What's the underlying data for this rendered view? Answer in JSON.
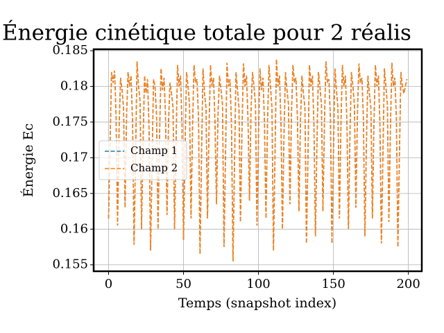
{
  "chart_data": {
    "type": "line",
    "title": "Énergie cinétique totale pour 2 réalis",
    "xlabel": "Temps (snapshot index)",
    "ylabel": "Énergie Ec",
    "x": [
      0,
      1,
      2,
      3,
      4,
      5,
      6,
      7,
      8,
      9,
      10,
      11,
      12,
      13,
      14,
      15,
      16,
      17,
      18,
      19,
      20,
      21,
      22,
      23,
      24,
      25,
      26,
      27,
      28,
      29,
      30,
      31,
      32,
      33,
      34,
      35,
      36,
      37,
      38,
      39,
      40,
      41,
      42,
      43,
      44,
      45,
      46,
      47,
      48,
      49,
      50,
      51,
      52,
      53,
      54,
      55,
      56,
      57,
      58,
      59,
      60,
      61,
      62,
      63,
      64,
      65,
      66,
      67,
      68,
      69,
      70,
      71,
      72,
      73,
      74,
      75,
      76,
      77,
      78,
      79,
      80,
      81,
      82,
      83,
      84,
      85,
      86,
      87,
      88,
      89,
      90,
      91,
      92,
      93,
      94,
      95,
      96,
      97,
      98,
      99,
      100,
      101,
      102,
      103,
      104,
      105,
      106,
      107,
      108,
      109,
      110,
      111,
      112,
      113,
      114,
      115,
      116,
      117,
      118,
      119,
      120,
      121,
      122,
      123,
      124,
      125,
      126,
      127,
      128,
      129,
      130,
      131,
      132,
      133,
      134,
      135,
      136,
      137,
      138,
      139,
      140,
      141,
      142,
      143,
      144,
      145,
      146,
      147,
      148,
      149,
      150,
      151,
      152,
      153,
      154,
      155,
      156,
      157,
      158,
      159,
      160,
      161,
      162,
      163,
      164,
      165,
      166,
      167,
      168,
      169,
      170,
      171,
      172,
      173,
      174,
      175,
      176,
      177,
      178,
      179,
      180,
      181,
      182,
      183,
      184,
      185,
      186,
      187,
      188,
      189,
      190,
      191,
      192,
      193,
      194,
      195,
      196,
      197,
      198,
      199
    ],
    "series": [
      {
        "name": "Champ 1",
        "color": "#1f77b4",
        "values": [
          0.1615,
          0.172,
          0.182,
          0.1805,
          0.1822,
          0.176,
          0.1605,
          0.174,
          0.1812,
          0.1795,
          0.177,
          0.163,
          0.176,
          0.182,
          0.18,
          0.1815,
          0.175,
          0.1578,
          0.17,
          0.1835,
          0.18,
          0.178,
          0.16,
          0.172,
          0.1815,
          0.179,
          0.181,
          0.174,
          0.157,
          0.169,
          0.181,
          0.18,
          0.176,
          0.16,
          0.173,
          0.1825,
          0.1795,
          0.1812,
          0.176,
          0.162,
          0.175,
          0.1805,
          0.179,
          0.177,
          0.16,
          0.172,
          0.183,
          0.18,
          0.1815,
          0.1745,
          0.1585,
          0.171,
          0.182,
          0.18,
          0.1775,
          0.1615,
          0.174,
          0.183,
          0.1805,
          0.181,
          0.1755,
          0.1565,
          0.17,
          0.1825,
          0.179,
          0.177,
          0.1615,
          0.174,
          0.183,
          0.18,
          0.1812,
          0.175,
          0.1635,
          0.176,
          0.1815,
          0.1795,
          0.1775,
          0.1575,
          0.17,
          0.1833,
          0.18,
          0.181,
          0.1745,
          0.1555,
          0.169,
          0.182,
          0.1795,
          0.177,
          0.161,
          0.174,
          0.1832,
          0.18,
          0.1815,
          0.1755,
          0.164,
          0.1765,
          0.182,
          0.18,
          0.1775,
          0.1605,
          0.173,
          0.1825,
          0.1795,
          0.1812,
          0.175,
          0.1615,
          0.1745,
          0.183,
          0.18,
          0.177,
          0.157,
          0.17,
          0.1838,
          0.18,
          0.1815,
          0.175,
          0.16,
          0.173,
          0.182,
          0.1795,
          0.1775,
          0.1635,
          0.176,
          0.183,
          0.1805,
          0.1812,
          0.1755,
          0.1625,
          0.175,
          0.1815,
          0.179,
          0.177,
          0.158,
          0.17,
          0.183,
          0.18,
          0.1815,
          0.1745,
          0.159,
          0.172,
          0.182,
          0.18,
          0.1775,
          0.1625,
          0.175,
          0.1835,
          0.1805,
          0.181,
          0.1755,
          0.158,
          0.17,
          0.1825,
          0.1795,
          0.177,
          0.1615,
          0.1745,
          0.183,
          0.18,
          0.1815,
          0.175,
          0.16,
          0.173,
          0.182,
          0.18,
          0.1775,
          0.163,
          0.176,
          0.1832,
          0.1805,
          0.1812,
          0.1755,
          0.159,
          0.172,
          0.1815,
          0.179,
          0.177,
          0.1615,
          0.1745,
          0.183,
          0.18,
          0.1815,
          0.175,
          0.158,
          0.17,
          0.1825,
          0.18,
          0.1775,
          0.161,
          0.174,
          0.1833,
          0.18,
          0.1812,
          0.1755,
          0.1575,
          0.17,
          0.182,
          0.18,
          0.179,
          0.18,
          0.181
        ]
      },
      {
        "name": "Champ 2",
        "color": "#ff7f0e",
        "values": [
          0.1615,
          0.172,
          0.182,
          0.1805,
          0.1822,
          0.176,
          0.1605,
          0.174,
          0.1812,
          0.1795,
          0.177,
          0.163,
          0.176,
          0.182,
          0.18,
          0.1815,
          0.175,
          0.1578,
          0.17,
          0.1835,
          0.18,
          0.178,
          0.16,
          0.172,
          0.1815,
          0.179,
          0.181,
          0.174,
          0.157,
          0.169,
          0.181,
          0.18,
          0.176,
          0.16,
          0.173,
          0.1825,
          0.1795,
          0.1812,
          0.176,
          0.162,
          0.175,
          0.1805,
          0.179,
          0.177,
          0.16,
          0.172,
          0.183,
          0.18,
          0.1815,
          0.1745,
          0.1585,
          0.171,
          0.182,
          0.18,
          0.1775,
          0.1615,
          0.174,
          0.183,
          0.1805,
          0.181,
          0.1755,
          0.1565,
          0.17,
          0.1825,
          0.179,
          0.177,
          0.1615,
          0.174,
          0.183,
          0.18,
          0.1812,
          0.175,
          0.1635,
          0.176,
          0.1815,
          0.1795,
          0.1775,
          0.1575,
          0.17,
          0.1833,
          0.18,
          0.181,
          0.1745,
          0.1555,
          0.169,
          0.182,
          0.1795,
          0.177,
          0.161,
          0.174,
          0.1832,
          0.18,
          0.1815,
          0.1755,
          0.164,
          0.1765,
          0.182,
          0.18,
          0.1775,
          0.1605,
          0.173,
          0.1825,
          0.1795,
          0.1812,
          0.175,
          0.1615,
          0.1745,
          0.183,
          0.18,
          0.177,
          0.157,
          0.17,
          0.1838,
          0.18,
          0.1815,
          0.175,
          0.16,
          0.173,
          0.182,
          0.1795,
          0.1775,
          0.1635,
          0.176,
          0.183,
          0.1805,
          0.1812,
          0.1755,
          0.1625,
          0.175,
          0.1815,
          0.179,
          0.177,
          0.158,
          0.17,
          0.183,
          0.18,
          0.1815,
          0.1745,
          0.159,
          0.172,
          0.182,
          0.18,
          0.1775,
          0.1625,
          0.175,
          0.1835,
          0.1805,
          0.181,
          0.1755,
          0.158,
          0.17,
          0.1825,
          0.1795,
          0.177,
          0.1615,
          0.1745,
          0.183,
          0.18,
          0.1815,
          0.175,
          0.16,
          0.173,
          0.182,
          0.18,
          0.1775,
          0.163,
          0.176,
          0.1832,
          0.1805,
          0.1812,
          0.1755,
          0.159,
          0.172,
          0.1815,
          0.179,
          0.177,
          0.1615,
          0.1745,
          0.183,
          0.18,
          0.1815,
          0.175,
          0.158,
          0.17,
          0.1825,
          0.18,
          0.1775,
          0.161,
          0.174,
          0.1833,
          0.18,
          0.1812,
          0.1755,
          0.1575,
          0.17,
          0.182,
          0.18,
          0.179,
          0.18,
          0.181
        ]
      }
    ],
    "xlim": [
      -9.95,
      208.95
    ],
    "xticks": [
      0,
      50,
      100,
      150,
      200
    ],
    "ylim": [
      0.1541,
      0.1852
    ],
    "yticks": [
      0.155,
      0.16,
      0.165,
      0.17,
      0.175,
      0.18,
      0.185
    ],
    "grid": true,
    "legend": "center left"
  }
}
